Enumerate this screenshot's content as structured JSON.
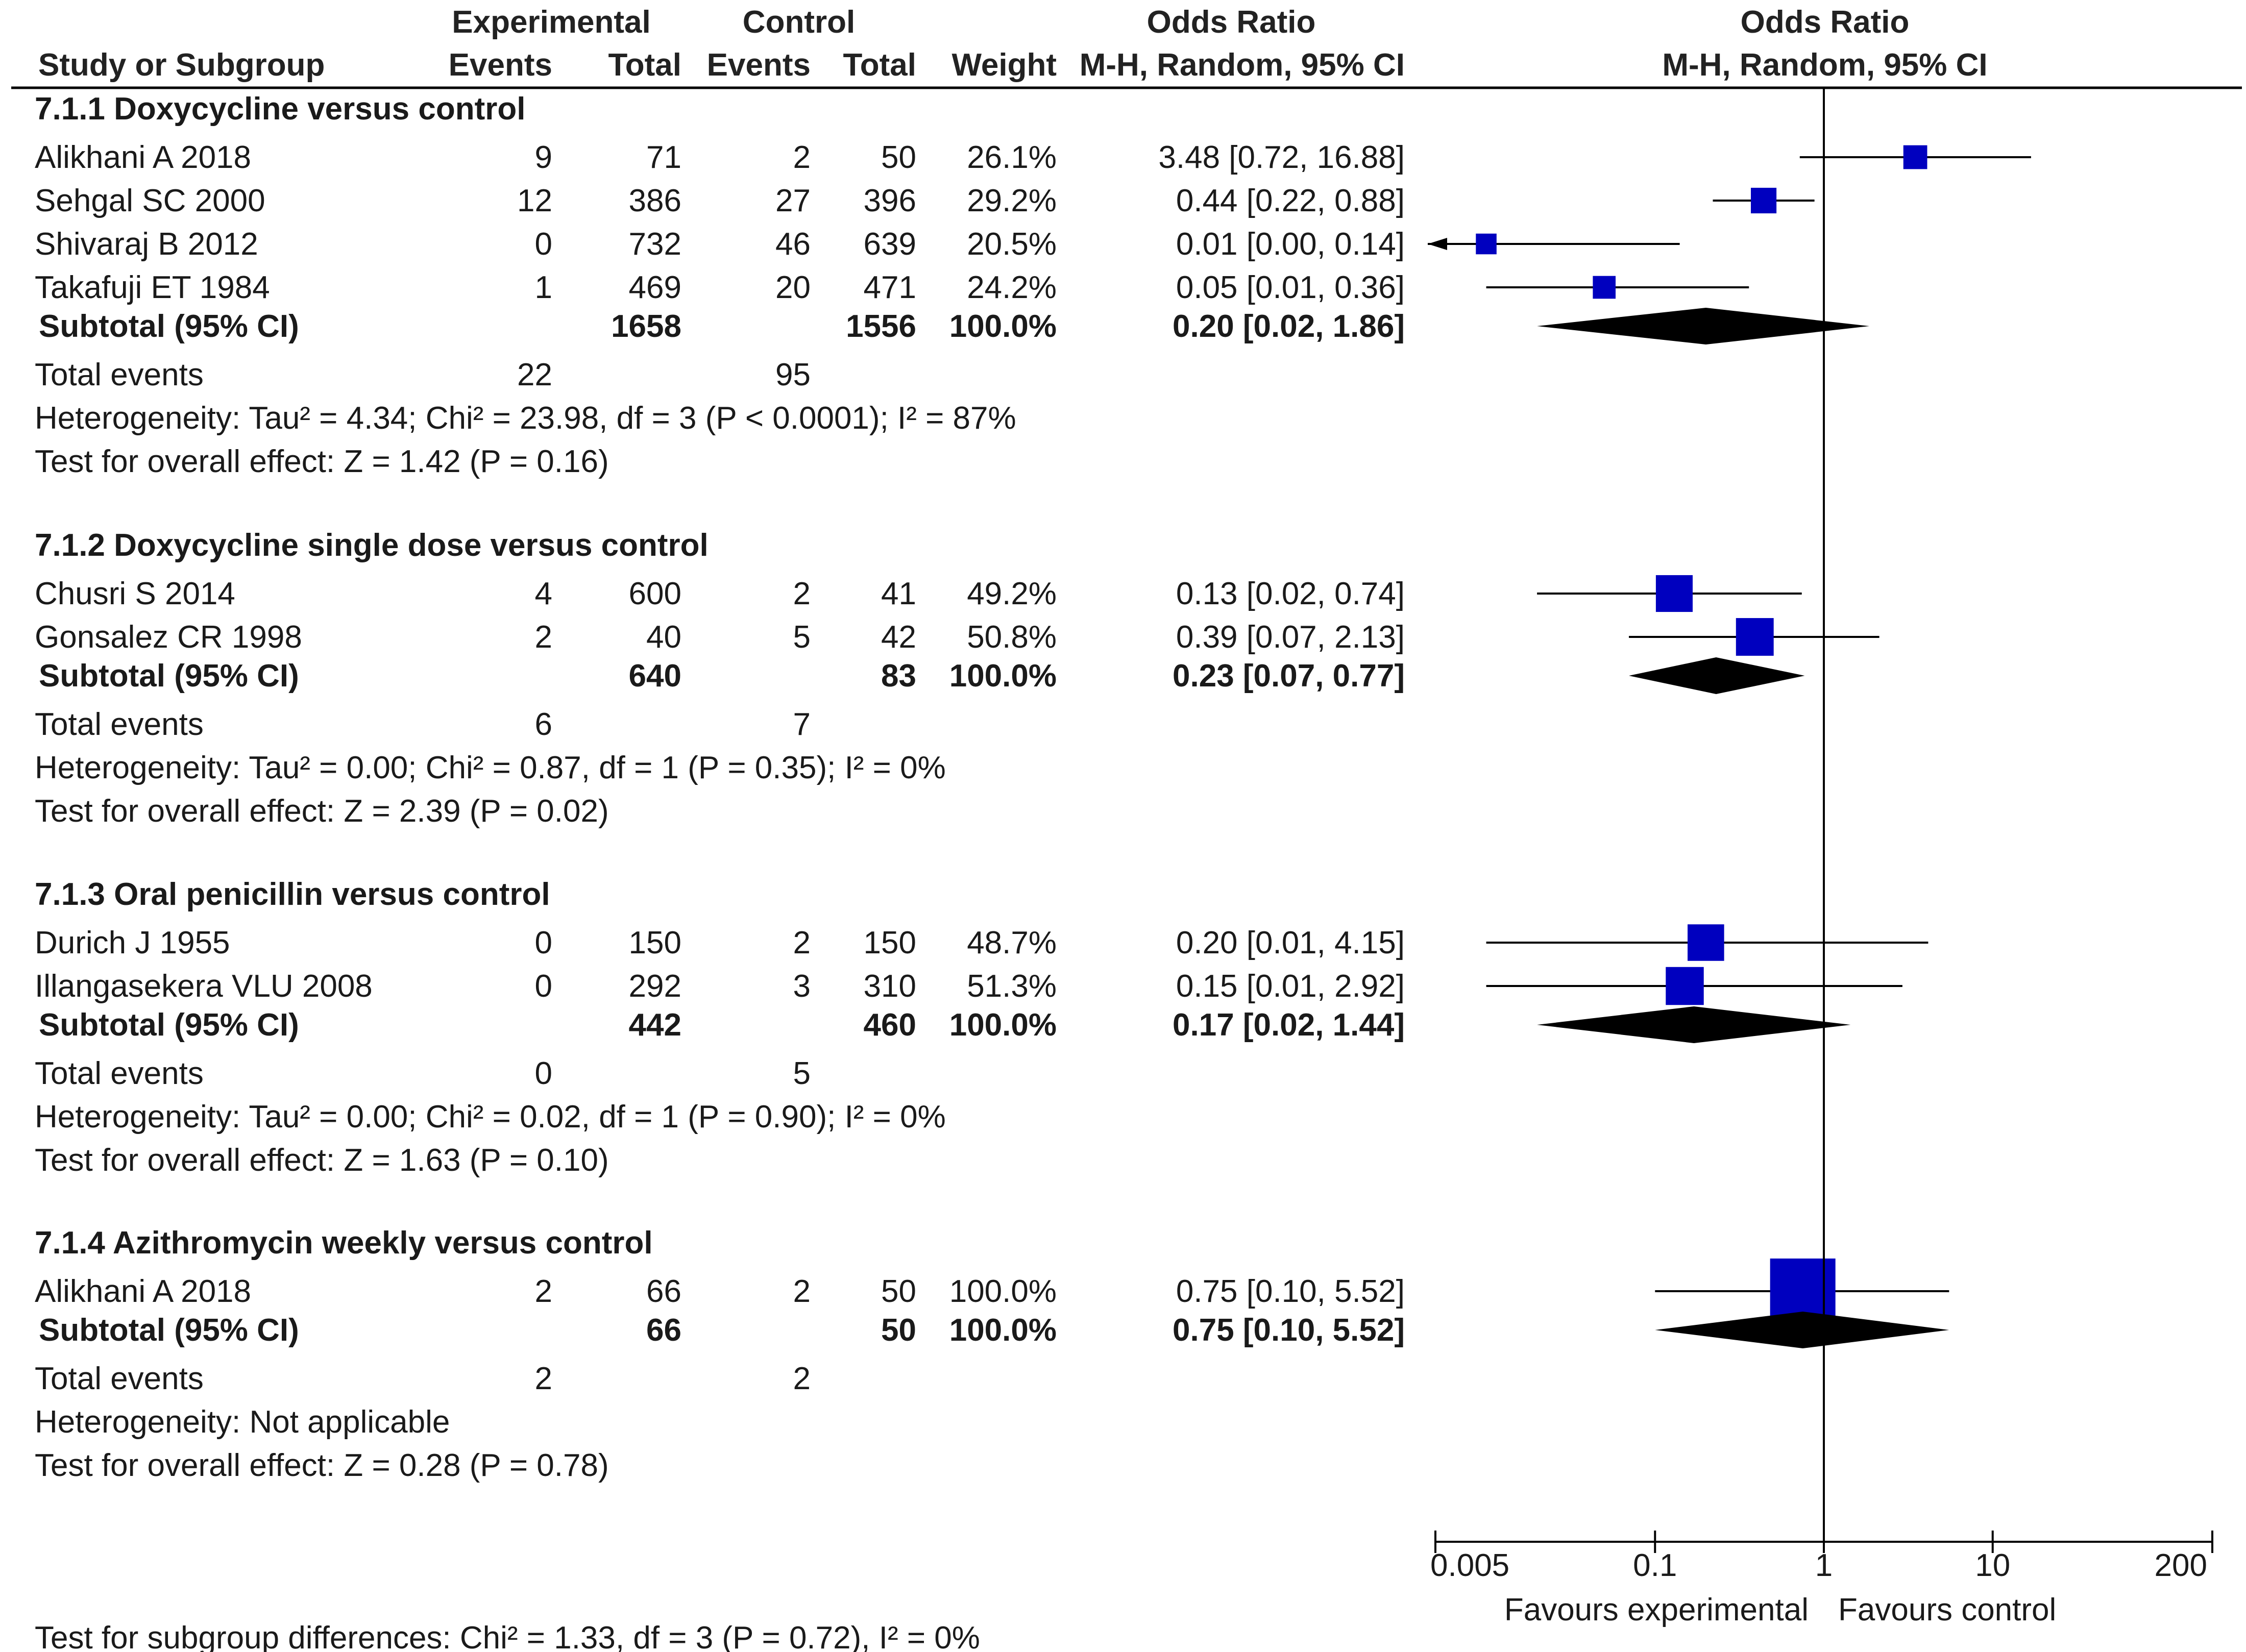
{
  "colors": {
    "square": "#0000BF",
    "diamond": "#000000",
    "text": "#1a1a1a",
    "line": "#000000"
  },
  "headers": {
    "group_experimental": "Experimental",
    "group_control": "Control",
    "or_title_table": "Odds Ratio",
    "or_title_plot": "Odds Ratio",
    "study": "Study or Subgroup",
    "exp_events": "Events",
    "exp_total": "Total",
    "ctl_events": "Events",
    "ctl_total": "Total",
    "weight": "Weight",
    "method_table": "M-H, Random, 95% CI",
    "method_plot": "M-H, Random, 95% CI"
  },
  "chart_data": {
    "type": "forest",
    "measure": "Odds Ratio",
    "scale": "log",
    "axis": {
      "min": 0.005,
      "max": 200,
      "ticks": [
        0.005,
        0.1,
        1,
        10,
        200
      ],
      "tick_labels": [
        "0.005",
        "0.1",
        "1",
        "10",
        "200"
      ],
      "null_line": 1
    },
    "favours_left": "Favours experimental",
    "favours_right": "Favours control",
    "subgroups": [
      {
        "title": "7.1.1 Doxycycline versus control",
        "studies": [
          {
            "name": "Alikhani A 2018",
            "exp_events": "9",
            "exp_total": "71",
            "ctl_events": "2",
            "ctl_total": "50",
            "weight": "26.1%",
            "ci_text": "3.48 [0.72, 16.88]",
            "or": 3.48,
            "lo": 0.72,
            "hi": 16.88,
            "weight_value": 26.1
          },
          {
            "name": "Sehgal SC 2000",
            "exp_events": "12",
            "exp_total": "386",
            "ctl_events": "27",
            "ctl_total": "396",
            "weight": "29.2%",
            "ci_text": "0.44 [0.22, 0.88]",
            "or": 0.44,
            "lo": 0.22,
            "hi": 0.88,
            "weight_value": 29.2
          },
          {
            "name": "Shivaraj B 2012",
            "exp_events": "0",
            "exp_total": "732",
            "ctl_events": "46",
            "ctl_total": "639",
            "weight": "20.5%",
            "ci_text": "0.01 [0.00, 0.14]",
            "or": 0.01,
            "lo": 0.0,
            "hi": 0.14,
            "weight_value": 20.5
          },
          {
            "name": "Takafuji ET 1984",
            "exp_events": "1",
            "exp_total": "469",
            "ctl_events": "20",
            "ctl_total": "471",
            "weight": "24.2%",
            "ci_text": "0.05 [0.01, 0.36]",
            "or": 0.05,
            "lo": 0.01,
            "hi": 0.36,
            "weight_value": 24.2
          }
        ],
        "subtotal": {
          "label": "Subtotal (95% CI)",
          "exp_total": "1658",
          "ctl_total": "1556",
          "weight": "100.0%",
          "ci_text": "0.20 [0.02, 1.86]",
          "or": 0.2,
          "lo": 0.02,
          "hi": 1.86
        },
        "total_events": {
          "label": "Total events",
          "exp": "22",
          "ctl": "95"
        },
        "heterogeneity": "Heterogeneity: Tau² = 4.34; Chi² = 23.98, df = 3 (P < 0.0001); I² = 87%",
        "overall_effect": "Test for overall effect: Z = 1.42 (P = 0.16)"
      },
      {
        "title": "7.1.2 Doxycycline single dose versus control",
        "studies": [
          {
            "name": "Chusri S 2014",
            "exp_events": "4",
            "exp_total": "600",
            "ctl_events": "2",
            "ctl_total": "41",
            "weight": "49.2%",
            "ci_text": "0.13 [0.02, 0.74]",
            "or": 0.13,
            "lo": 0.02,
            "hi": 0.74,
            "weight_value": 49.2
          },
          {
            "name": "Gonsalez CR 1998",
            "exp_events": "2",
            "exp_total": "40",
            "ctl_events": "5",
            "ctl_total": "42",
            "weight": "50.8%",
            "ci_text": "0.39 [0.07, 2.13]",
            "or": 0.39,
            "lo": 0.07,
            "hi": 2.13,
            "weight_value": 50.8
          }
        ],
        "subtotal": {
          "label": "Subtotal (95% CI)",
          "exp_total": "640",
          "ctl_total": "83",
          "weight": "100.0%",
          "ci_text": "0.23 [0.07, 0.77]",
          "or": 0.23,
          "lo": 0.07,
          "hi": 0.77
        },
        "total_events": {
          "label": "Total events",
          "exp": "6",
          "ctl": "7"
        },
        "heterogeneity": "Heterogeneity: Tau² = 0.00; Chi² = 0.87, df = 1 (P = 0.35); I² = 0%",
        "overall_effect": "Test for overall effect: Z = 2.39 (P = 0.02)"
      },
      {
        "title": "7.1.3 Oral penicillin versus control",
        "studies": [
          {
            "name": "Durich J 1955",
            "exp_events": "0",
            "exp_total": "150",
            "ctl_events": "2",
            "ctl_total": "150",
            "weight": "48.7%",
            "ci_text": "0.20 [0.01, 4.15]",
            "or": 0.2,
            "lo": 0.01,
            "hi": 4.15,
            "weight_value": 48.7
          },
          {
            "name": "Illangasekera VLU 2008",
            "exp_events": "0",
            "exp_total": "292",
            "ctl_events": "3",
            "ctl_total": "310",
            "weight": "51.3%",
            "ci_text": "0.15 [0.01, 2.92]",
            "or": 0.15,
            "lo": 0.01,
            "hi": 2.92,
            "weight_value": 51.3
          }
        ],
        "subtotal": {
          "label": "Subtotal (95% CI)",
          "exp_total": "442",
          "ctl_total": "460",
          "weight": "100.0%",
          "ci_text": "0.17 [0.02, 1.44]",
          "or": 0.17,
          "lo": 0.02,
          "hi": 1.44
        },
        "total_events": {
          "label": "Total events",
          "exp": "0",
          "ctl": "5"
        },
        "heterogeneity": "Heterogeneity: Tau² = 0.00; Chi² = 0.02, df = 1 (P = 0.90); I² = 0%",
        "overall_effect": "Test for overall effect: Z = 1.63 (P = 0.10)"
      },
      {
        "title": "7.1.4 Azithromycin weekly versus control",
        "studies": [
          {
            "name": "Alikhani A 2018",
            "exp_events": "2",
            "exp_total": "66",
            "ctl_events": "2",
            "ctl_total": "50",
            "weight": "100.0%",
            "ci_text": "0.75 [0.10, 5.52]",
            "or": 0.75,
            "lo": 0.1,
            "hi": 5.52,
            "weight_value": 100.0
          }
        ],
        "subtotal": {
          "label": "Subtotal (95% CI)",
          "exp_total": "66",
          "ctl_total": "50",
          "weight": "100.0%",
          "ci_text": "0.75 [0.10, 5.52]",
          "or": 0.75,
          "lo": 0.1,
          "hi": 5.52
        },
        "total_events": {
          "label": "Total events",
          "exp": "2",
          "ctl": "2"
        },
        "heterogeneity": "Heterogeneity: Not applicable",
        "overall_effect": "Test for overall effect: Z = 0.28 (P = 0.78)"
      }
    ],
    "subgroup_differences": "Test for subgroup differences: Chi² = 1.33, df = 3 (P = 0.72), I² = 0%"
  }
}
